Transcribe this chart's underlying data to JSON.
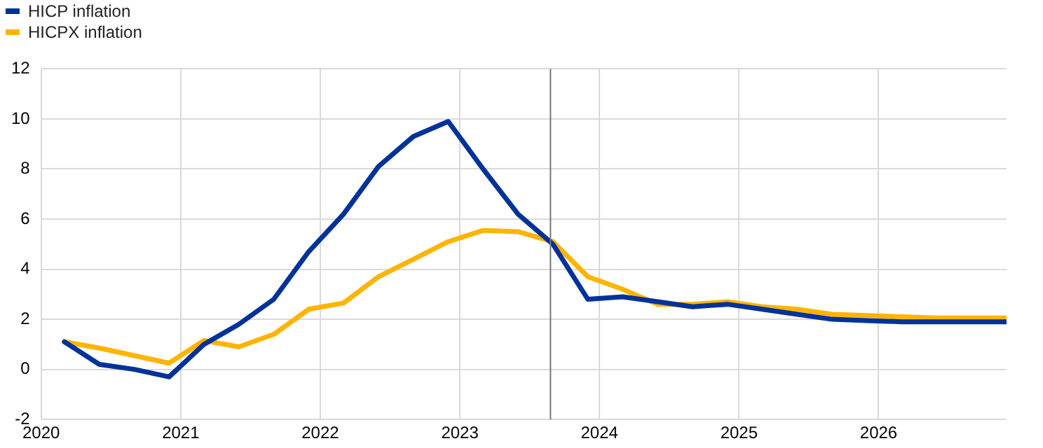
{
  "chart_data": {
    "type": "line",
    "x": [
      "2020-03",
      "2020-06",
      "2020-09",
      "2020-12",
      "2021-03",
      "2021-06",
      "2021-09",
      "2021-12",
      "2022-03",
      "2022-06",
      "2022-09",
      "2022-12",
      "2023-03",
      "2023-06",
      "2023-09",
      "2023-12",
      "2024-03",
      "2024-06",
      "2024-09",
      "2024-12",
      "2025-03",
      "2025-06",
      "2025-09",
      "2025-12",
      "2026-03",
      "2026-06",
      "2026-09",
      "2026-12"
    ],
    "series": [
      {
        "name": "HICP inflation",
        "color": "#003299",
        "values": [
          1.1,
          0.2,
          0.0,
          -0.3,
          1.0,
          1.8,
          2.8,
          4.7,
          6.2,
          8.1,
          9.3,
          9.9,
          8.0,
          6.2,
          5.0,
          2.8,
          2.9,
          2.7,
          2.5,
          2.6,
          2.4,
          2.2,
          2.0,
          1.95,
          1.9,
          1.9,
          1.9,
          1.9
        ]
      },
      {
        "name": "HICPX inflation",
        "color": "#ffb400",
        "values": [
          1.1,
          0.85,
          0.55,
          0.25,
          1.15,
          0.9,
          1.4,
          2.4,
          2.65,
          3.7,
          4.4,
          5.1,
          5.55,
          5.5,
          5.1,
          3.7,
          3.2,
          2.6,
          2.6,
          2.7,
          2.5,
          2.4,
          2.2,
          2.15,
          2.1,
          2.05,
          2.05,
          2.05
        ]
      }
    ],
    "xlim": [
      "2020-01",
      "2026-12"
    ],
    "xticks": [
      {
        "value": "2020-01",
        "label": "2020"
      },
      {
        "value": "2021-01",
        "label": "2021"
      },
      {
        "value": "2022-01",
        "label": "2022"
      },
      {
        "value": "2023-01",
        "label": "2023"
      },
      {
        "value": "2024-01",
        "label": "2024"
      },
      {
        "value": "2025-01",
        "label": "2025"
      },
      {
        "value": "2026-01",
        "label": "2026"
      }
    ],
    "ylim": [
      -2,
      12
    ],
    "yticks": [
      -2,
      0,
      2,
      4,
      6,
      8,
      10,
      12
    ],
    "ref_lines": [
      {
        "axis": "x",
        "value": "2023-08-25",
        "color": "#777777"
      }
    ],
    "grid": true,
    "legend": "top left",
    "marker": "none",
    "line_style": "solid"
  }
}
